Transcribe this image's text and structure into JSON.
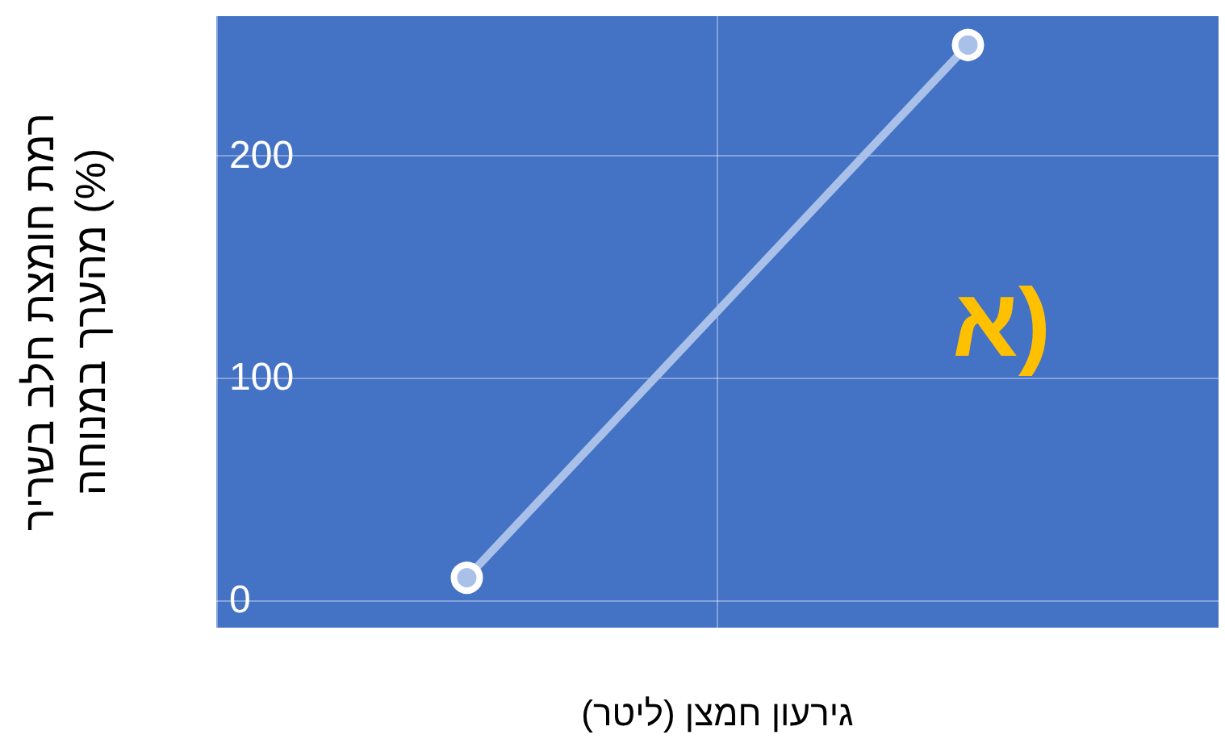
{
  "chart_data": {
    "type": "line",
    "xlabel": "גירעון חמצן (ליטר)",
    "ylabel": "רמת חומצת חלב בשריר\nמהערך במנוחה (%)",
    "annotations": [
      "א)"
    ],
    "categories": [
      null,
      null
    ],
    "series": [
      {
        "color": "#a9c1e8",
        "values": [
          10,
          250
        ]
      }
    ],
    "ylim": [
      -12.5,
      263
    ],
    "yticks": [
      0,
      100,
      200
    ],
    "tick_labels": "y",
    "grid": true,
    "marker": "circle",
    "line_style": "solid"
  }
}
